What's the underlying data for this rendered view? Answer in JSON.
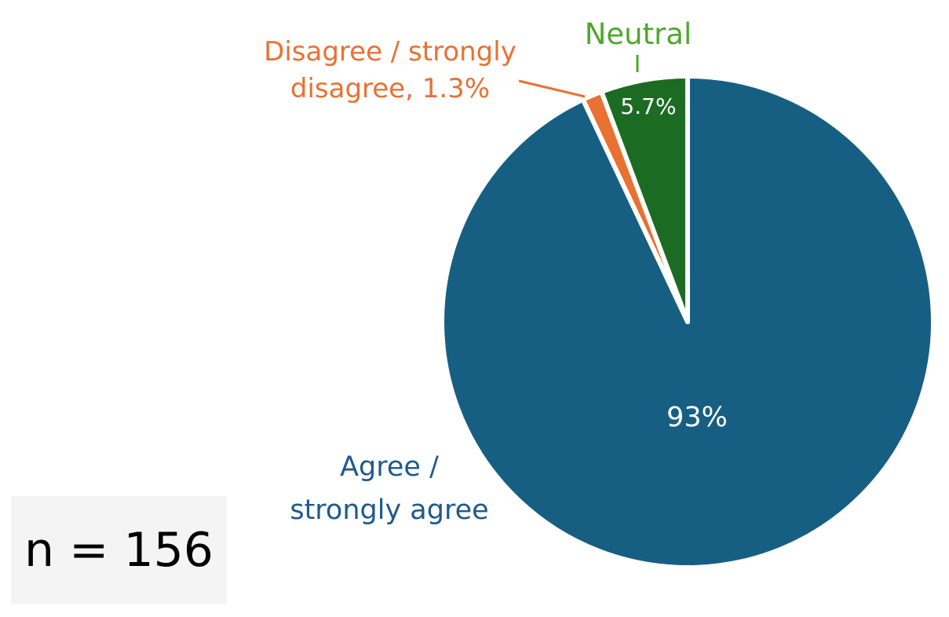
{
  "chart_data": {
    "type": "pie",
    "slices": [
      {
        "key": "agree",
        "label_line1": "Agree /",
        "label_line2": "strongly agree",
        "value": 93,
        "value_label": "93%",
        "color": "#175f82",
        "label_color": "#1f5a8c"
      },
      {
        "key": "disagree",
        "label_line1": "Disagree / strongly",
        "label_line2": "disagree, 1.3%",
        "value": 1.3,
        "value_label": "",
        "color": "#e97132",
        "label_color": "#e97132"
      },
      {
        "key": "neutral",
        "label_line1": "Neutral",
        "label_line2": "",
        "value": 5.7,
        "value_label": "5.7%",
        "color": "#1c6b22",
        "label_color": "#4ea72e"
      }
    ]
  },
  "sample_size": {
    "text": "n = 156"
  }
}
